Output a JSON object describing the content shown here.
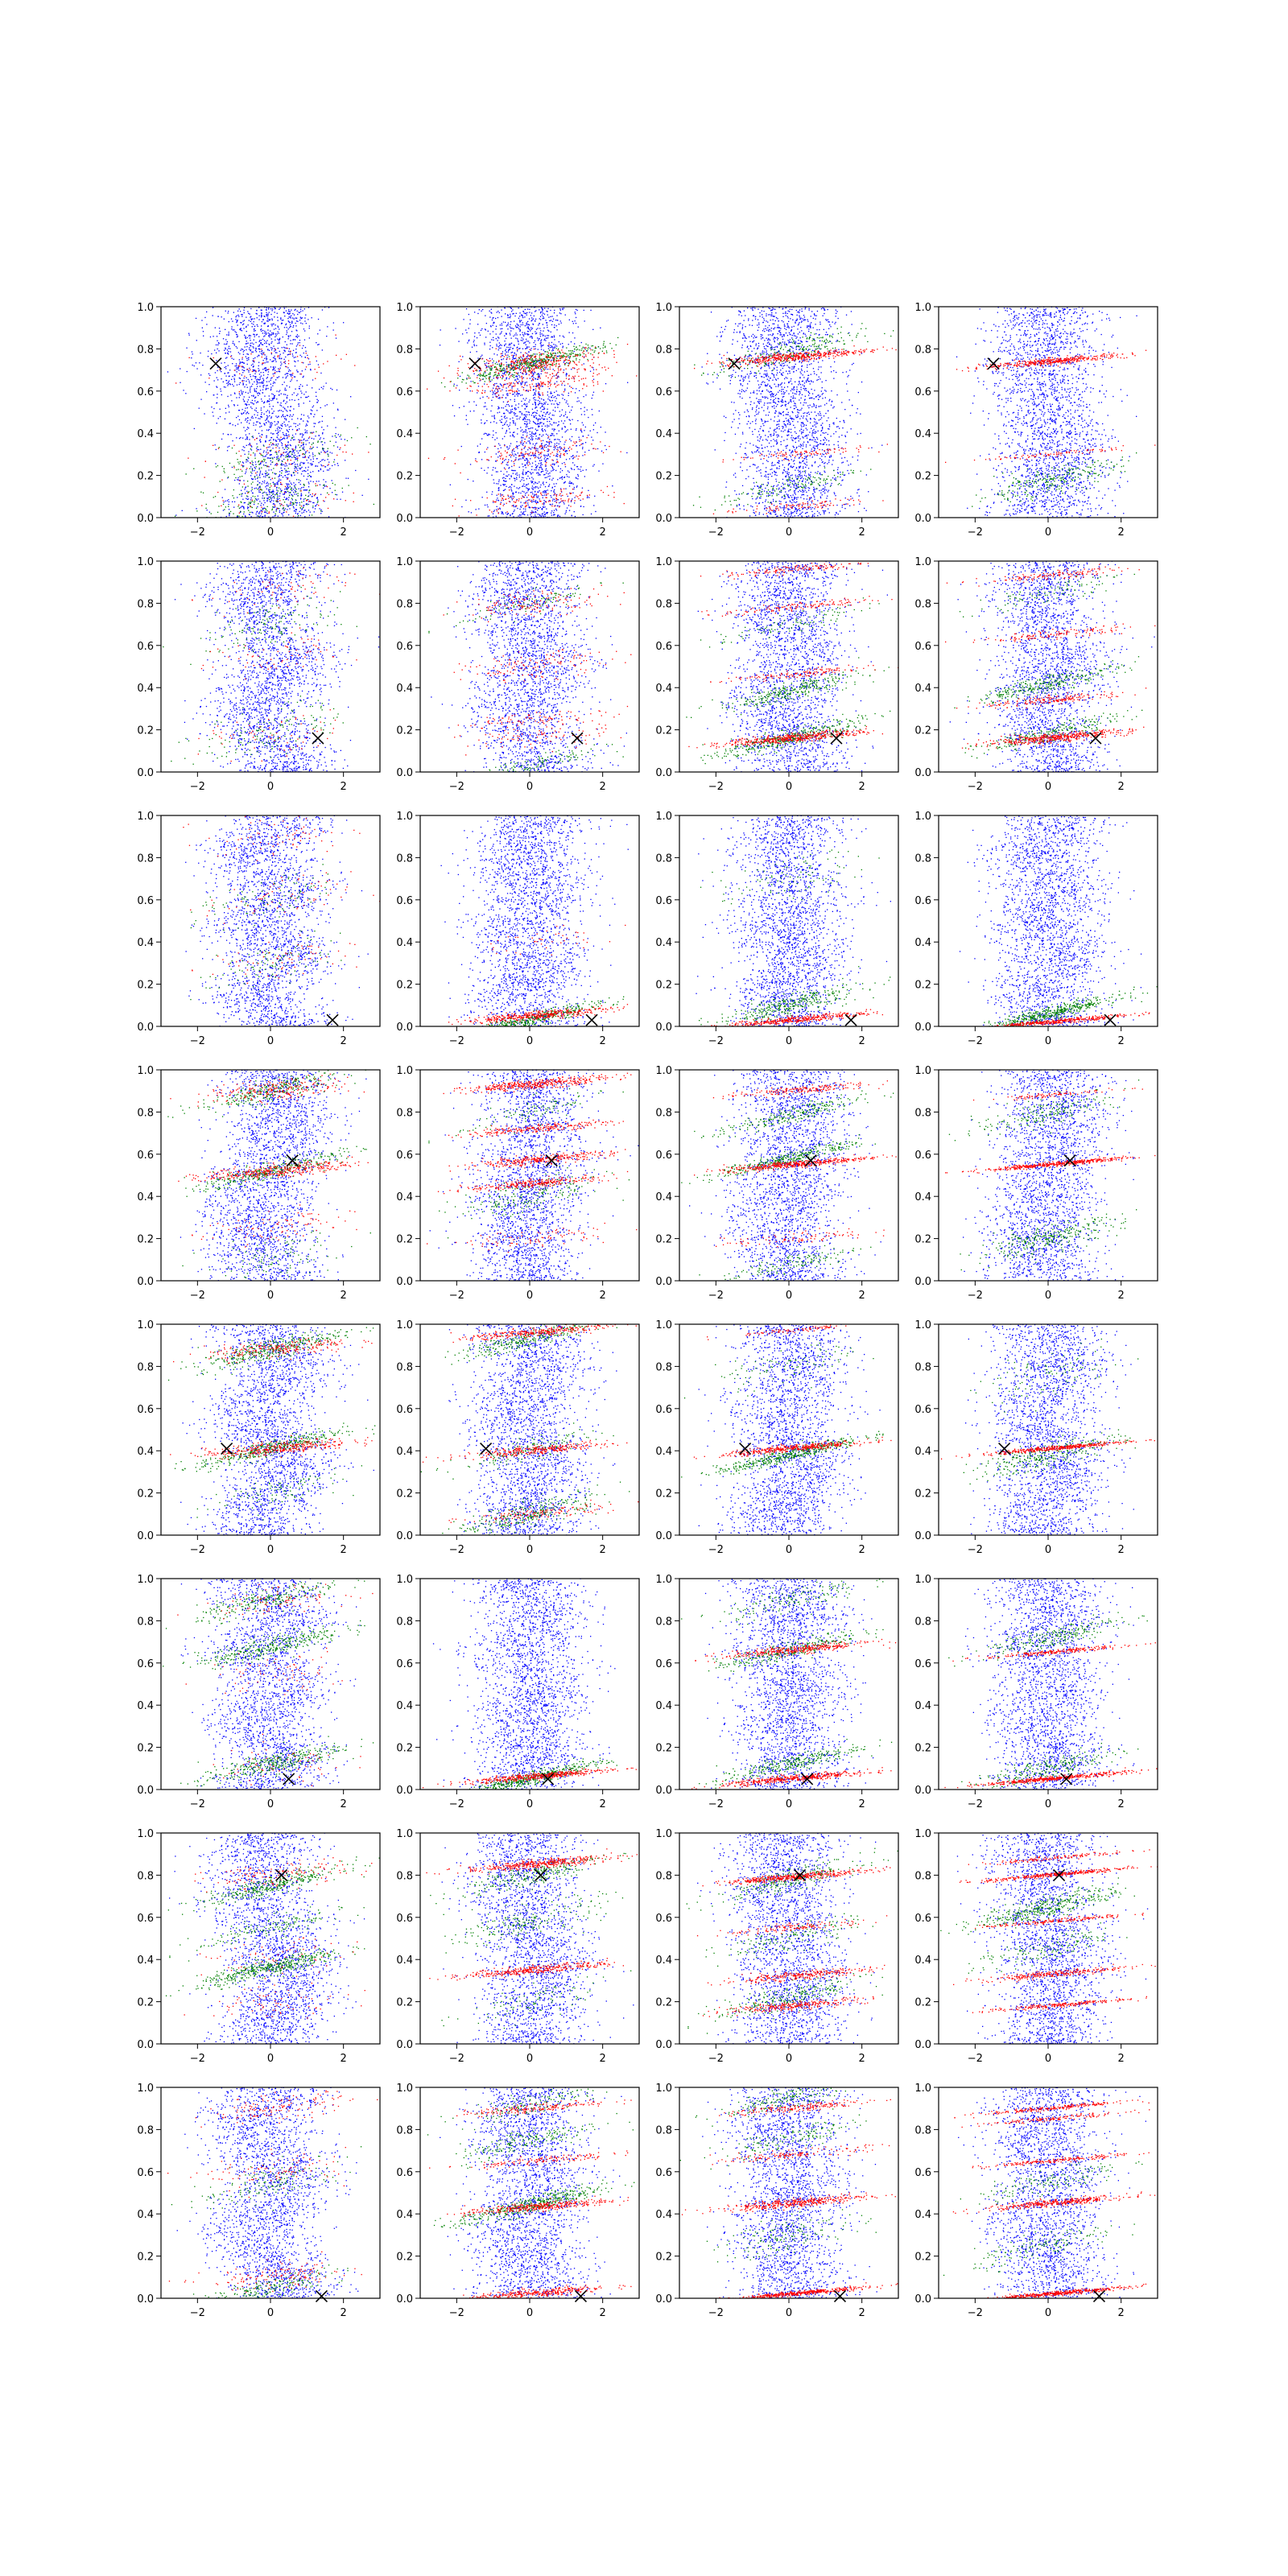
{
  "figure": {
    "grid_rows": 8,
    "grid_cols": 4,
    "colors": {
      "background": "#0000ff",
      "green": "#008000",
      "red": "#ff0000",
      "marker": "#000000"
    },
    "marker": "x"
  },
  "chart_data": {
    "type": "scatter",
    "xlim": [
      -3,
      3
    ],
    "ylim": [
      0,
      1
    ],
    "x_ticks": [
      -2,
      0,
      2
    ],
    "y_ticks": [
      0.0,
      0.2,
      0.4,
      0.6,
      0.8,
      1.0
    ],
    "x_tick_labels": [
      "−2",
      "0",
      "2"
    ],
    "y_tick_labels": [
      "0.0",
      "0.2",
      "0.4",
      "0.6",
      "0.8",
      "1.0"
    ],
    "grid": false,
    "point_marker_per_row": [
      [
        -1.5,
        0.73
      ],
      [
        1.3,
        0.16
      ],
      [
        1.7,
        0.03
      ],
      [
        0.6,
        0.57
      ],
      [
        -1.2,
        0.41
      ],
      [
        0.5,
        0.05
      ],
      [
        0.3,
        0.8
      ],
      [
        1.4,
        0.01
      ]
    ],
    "panels": [
      {
        "row": 0,
        "col": 0,
        "red": [
          [
            0.73,
            0.08,
            0.15
          ],
          [
            0.3,
            0.1,
            0.15
          ],
          [
            0.08,
            0.12,
            0.15
          ]
        ],
        "green": [
          [
            0.08,
            0.12,
            0.4
          ],
          [
            0.28,
            0.1,
            0.3
          ]
        ]
      },
      {
        "row": 0,
        "col": 1,
        "red": [
          [
            0.73,
            0.06,
            0.8
          ],
          [
            0.63,
            0.05,
            0.4
          ],
          [
            0.3,
            0.06,
            0.3
          ],
          [
            0.08,
            0.05,
            0.3
          ]
        ],
        "green": [
          [
            0.73,
            0.04,
            0.9
          ]
        ]
      },
      {
        "row": 0,
        "col": 2,
        "red": [
          [
            0.76,
            0.02,
            1.0
          ],
          [
            0.3,
            0.02,
            0.2
          ],
          [
            0.05,
            0.02,
            0.2
          ]
        ],
        "green": [
          [
            0.78,
            0.06,
            0.5
          ],
          [
            0.15,
            0.05,
            0.3
          ]
        ]
      },
      {
        "row": 0,
        "col": 3,
        "red": [
          [
            0.74,
            0.015,
            0.9
          ],
          [
            0.3,
            0.01,
            0.2
          ]
        ],
        "green": [
          [
            0.17,
            0.06,
            0.5
          ]
        ]
      },
      {
        "row": 1,
        "col": 0,
        "red": [
          [
            0.16,
            0.1,
            0.15
          ],
          [
            0.55,
            0.1,
            0.15
          ],
          [
            0.85,
            0.1,
            0.15
          ]
        ],
        "green": [
          [
            0.2,
            0.12,
            0.3
          ],
          [
            0.7,
            0.12,
            0.3
          ]
        ]
      },
      {
        "row": 1,
        "col": 1,
        "red": [
          [
            0.16,
            0.06,
            0.2
          ],
          [
            0.5,
            0.06,
            0.3
          ],
          [
            0.8,
            0.06,
            0.3
          ],
          [
            0.25,
            0.03,
            0.2
          ]
        ],
        "green": [
          [
            0.03,
            0.04,
            0.3
          ],
          [
            0.8,
            0.05,
            0.2
          ]
        ]
      },
      {
        "row": 1,
        "col": 2,
        "red": [
          [
            0.16,
            0.02,
            1.0
          ],
          [
            0.46,
            0.02,
            0.3
          ],
          [
            0.78,
            0.02,
            0.3
          ],
          [
            0.96,
            0.02,
            0.3
          ]
        ],
        "green": [
          [
            0.16,
            0.04,
            0.8
          ],
          [
            0.38,
            0.04,
            0.6
          ],
          [
            0.7,
            0.04,
            0.2
          ]
        ]
      },
      {
        "row": 1,
        "col": 3,
        "red": [
          [
            0.16,
            0.02,
            1.0
          ],
          [
            0.34,
            0.02,
            0.4
          ],
          [
            0.65,
            0.02,
            0.3
          ],
          [
            0.93,
            0.02,
            0.3
          ]
        ],
        "green": [
          [
            0.18,
            0.04,
            0.5
          ],
          [
            0.42,
            0.04,
            0.6
          ],
          [
            0.85,
            0.05,
            0.2
          ]
        ]
      },
      {
        "row": 2,
        "col": 0,
        "red": [
          [
            0.3,
            0.1,
            0.15
          ],
          [
            0.6,
            0.1,
            0.15
          ],
          [
            0.9,
            0.1,
            0.15
          ]
        ],
        "green": [
          [
            0.3,
            0.1,
            0.2
          ],
          [
            0.6,
            0.1,
            0.2
          ]
        ]
      },
      {
        "row": 2,
        "col": 1,
        "red": [
          [
            0.05,
            0.02,
            0.9
          ],
          [
            0.4,
            0.06,
            0.1
          ]
        ],
        "green": [
          [
            0.03,
            0.03,
            0.9
          ]
        ]
      },
      {
        "row": 2,
        "col": 2,
        "red": [
          [
            0.03,
            0.015,
            0.9
          ]
        ],
        "green": [
          [
            0.1,
            0.05,
            0.7
          ],
          [
            0.7,
            0.1,
            0.2
          ]
        ]
      },
      {
        "row": 2,
        "col": 3,
        "red": [
          [
            0.02,
            0.01,
            0.9
          ]
        ],
        "green": [
          [
            0.06,
            0.03,
            1.0
          ]
        ]
      },
      {
        "row": 3,
        "col": 0,
        "red": [
          [
            0.52,
            0.03,
            0.8
          ],
          [
            0.9,
            0.05,
            0.5
          ],
          [
            0.25,
            0.08,
            0.2
          ]
        ],
        "green": [
          [
            0.52,
            0.04,
            0.7
          ],
          [
            0.9,
            0.05,
            0.6
          ],
          [
            0.1,
            0.1,
            0.2
          ]
        ]
      },
      {
        "row": 3,
        "col": 1,
        "red": [
          [
            0.93,
            0.02,
            0.9
          ],
          [
            0.72,
            0.02,
            0.5
          ],
          [
            0.57,
            0.02,
            0.7
          ],
          [
            0.46,
            0.02,
            0.6
          ],
          [
            0.2,
            0.04,
            0.2
          ]
        ],
        "green": [
          [
            0.4,
            0.08,
            0.4
          ],
          [
            0.8,
            0.06,
            0.2
          ]
        ]
      },
      {
        "row": 3,
        "col": 2,
        "red": [
          [
            0.55,
            0.015,
            1.0
          ],
          [
            0.9,
            0.02,
            0.4
          ],
          [
            0.2,
            0.03,
            0.2
          ]
        ],
        "green": [
          [
            0.58,
            0.03,
            0.7
          ],
          [
            0.78,
            0.04,
            0.5
          ],
          [
            0.08,
            0.05,
            0.3
          ]
        ]
      },
      {
        "row": 3,
        "col": 3,
        "red": [
          [
            0.55,
            0.01,
            1.0
          ],
          [
            0.88,
            0.01,
            0.2
          ]
        ],
        "green": [
          [
            0.2,
            0.06,
            0.6
          ],
          [
            0.8,
            0.06,
            0.4
          ]
        ]
      },
      {
        "row": 4,
        "col": 0,
        "red": [
          [
            0.41,
            0.03,
            0.8
          ],
          [
            0.88,
            0.04,
            0.5
          ]
        ],
        "green": [
          [
            0.41,
            0.04,
            0.8
          ],
          [
            0.88,
            0.05,
            0.8
          ],
          [
            0.2,
            0.08,
            0.2
          ]
        ]
      },
      {
        "row": 4,
        "col": 1,
        "red": [
          [
            0.4,
            0.02,
            0.7
          ],
          [
            0.96,
            0.02,
            0.7
          ],
          [
            0.1,
            0.03,
            0.3
          ]
        ],
        "green": [
          [
            0.1,
            0.06,
            0.6
          ],
          [
            0.4,
            0.05,
            0.3
          ],
          [
            0.93,
            0.04,
            0.6
          ]
        ]
      },
      {
        "row": 4,
        "col": 2,
        "red": [
          [
            0.41,
            0.015,
            0.9
          ],
          [
            0.97,
            0.01,
            0.2
          ]
        ],
        "green": [
          [
            0.38,
            0.03,
            0.9
          ],
          [
            0.8,
            0.08,
            0.2
          ]
        ]
      },
      {
        "row": 4,
        "col": 3,
        "red": [
          [
            0.41,
            0.01,
            0.9
          ]
        ],
        "green": [
          [
            0.38,
            0.06,
            0.6
          ],
          [
            0.75,
            0.1,
            0.2
          ]
        ]
      },
      {
        "row": 5,
        "col": 0,
        "red": [
          [
            0.1,
            0.1,
            0.15
          ],
          [
            0.55,
            0.1,
            0.15
          ],
          [
            0.9,
            0.06,
            0.2
          ]
        ],
        "green": [
          [
            0.12,
            0.05,
            0.7
          ],
          [
            0.68,
            0.05,
            0.7
          ],
          [
            0.9,
            0.05,
            0.5
          ]
        ]
      },
      {
        "row": 5,
        "col": 1,
        "red": [
          [
            0.06,
            0.015,
            1.0
          ]
        ],
        "green": [
          [
            0.05,
            0.03,
            1.0
          ]
        ]
      },
      {
        "row": 5,
        "col": 2,
        "red": [
          [
            0.05,
            0.015,
            1.0
          ],
          [
            0.66,
            0.02,
            0.8
          ]
        ],
        "green": [
          [
            0.12,
            0.04,
            0.6
          ],
          [
            0.66,
            0.04,
            0.6
          ],
          [
            0.9,
            0.06,
            0.3
          ]
        ]
      },
      {
        "row": 5,
        "col": 3,
        "red": [
          [
            0.05,
            0.01,
            1.0
          ],
          [
            0.65,
            0.01,
            0.5
          ]
        ],
        "green": [
          [
            0.1,
            0.05,
            0.5
          ],
          [
            0.72,
            0.05,
            0.5
          ]
        ]
      },
      {
        "row": 6,
        "col": 0,
        "red": [
          [
            0.8,
            0.06,
            0.3
          ],
          [
            0.4,
            0.08,
            0.15
          ],
          [
            0.2,
            0.08,
            0.15
          ]
        ],
        "green": [
          [
            0.36,
            0.04,
            0.9
          ],
          [
            0.75,
            0.04,
            0.7
          ],
          [
            0.55,
            0.05,
            0.3
          ]
        ]
      },
      {
        "row": 6,
        "col": 1,
        "red": [
          [
            0.85,
            0.02,
            0.9
          ],
          [
            0.35,
            0.02,
            0.8
          ]
        ],
        "green": [
          [
            0.8,
            0.05,
            0.5
          ],
          [
            0.58,
            0.08,
            0.4
          ],
          [
            0.2,
            0.08,
            0.2
          ]
        ]
      },
      {
        "row": 6,
        "col": 2,
        "red": [
          [
            0.79,
            0.015,
            0.9
          ],
          [
            0.32,
            0.02,
            0.6
          ],
          [
            0.18,
            0.02,
            0.6
          ],
          [
            0.55,
            0.02,
            0.3
          ]
        ],
        "green": [
          [
            0.78,
            0.05,
            0.5
          ],
          [
            0.22,
            0.06,
            0.5
          ],
          [
            0.5,
            0.06,
            0.3
          ]
        ]
      },
      {
        "row": 6,
        "col": 3,
        "red": [
          [
            0.8,
            0.01,
            0.8
          ],
          [
            0.33,
            0.015,
            0.6
          ],
          [
            0.18,
            0.01,
            0.5
          ],
          [
            0.58,
            0.01,
            0.4
          ],
          [
            0.88,
            0.01,
            0.3
          ]
        ],
        "green": [
          [
            0.65,
            0.05,
            0.8
          ],
          [
            0.45,
            0.06,
            0.3
          ]
        ]
      },
      {
        "row": 7,
        "col": 0,
        "red": [
          [
            0.6,
            0.08,
            0.2
          ],
          [
            0.9,
            0.06,
            0.3
          ],
          [
            0.1,
            0.06,
            0.3
          ]
        ],
        "green": [
          [
            0.05,
            0.05,
            0.4
          ],
          [
            0.55,
            0.08,
            0.3
          ]
        ]
      },
      {
        "row": 7,
        "col": 1,
        "red": [
          [
            0.43,
            0.02,
            0.8
          ],
          [
            0.9,
            0.02,
            0.4
          ],
          [
            0.65,
            0.02,
            0.3
          ],
          [
            0.02,
            0.02,
            0.8
          ]
        ],
        "green": [
          [
            0.44,
            0.04,
            0.9
          ],
          [
            0.75,
            0.06,
            0.4
          ],
          [
            0.92,
            0.05,
            0.3
          ]
        ]
      },
      {
        "row": 7,
        "col": 2,
        "red": [
          [
            0.45,
            0.02,
            0.9
          ],
          [
            0.9,
            0.02,
            0.4
          ],
          [
            0.68,
            0.02,
            0.3
          ],
          [
            0.02,
            0.01,
            1.0
          ]
        ],
        "green": [
          [
            0.95,
            0.05,
            0.4
          ],
          [
            0.75,
            0.06,
            0.3
          ],
          [
            0.3,
            0.08,
            0.3
          ]
        ]
      },
      {
        "row": 7,
        "col": 3,
        "red": [
          [
            0.45,
            0.015,
            0.8
          ],
          [
            0.9,
            0.01,
            0.5
          ],
          [
            0.65,
            0.01,
            0.4
          ],
          [
            0.85,
            0.01,
            0.3
          ],
          [
            0.02,
            0.01,
            1.0
          ]
        ],
        "green": [
          [
            0.55,
            0.06,
            0.3
          ],
          [
            0.25,
            0.06,
            0.3
          ]
        ]
      }
    ]
  }
}
